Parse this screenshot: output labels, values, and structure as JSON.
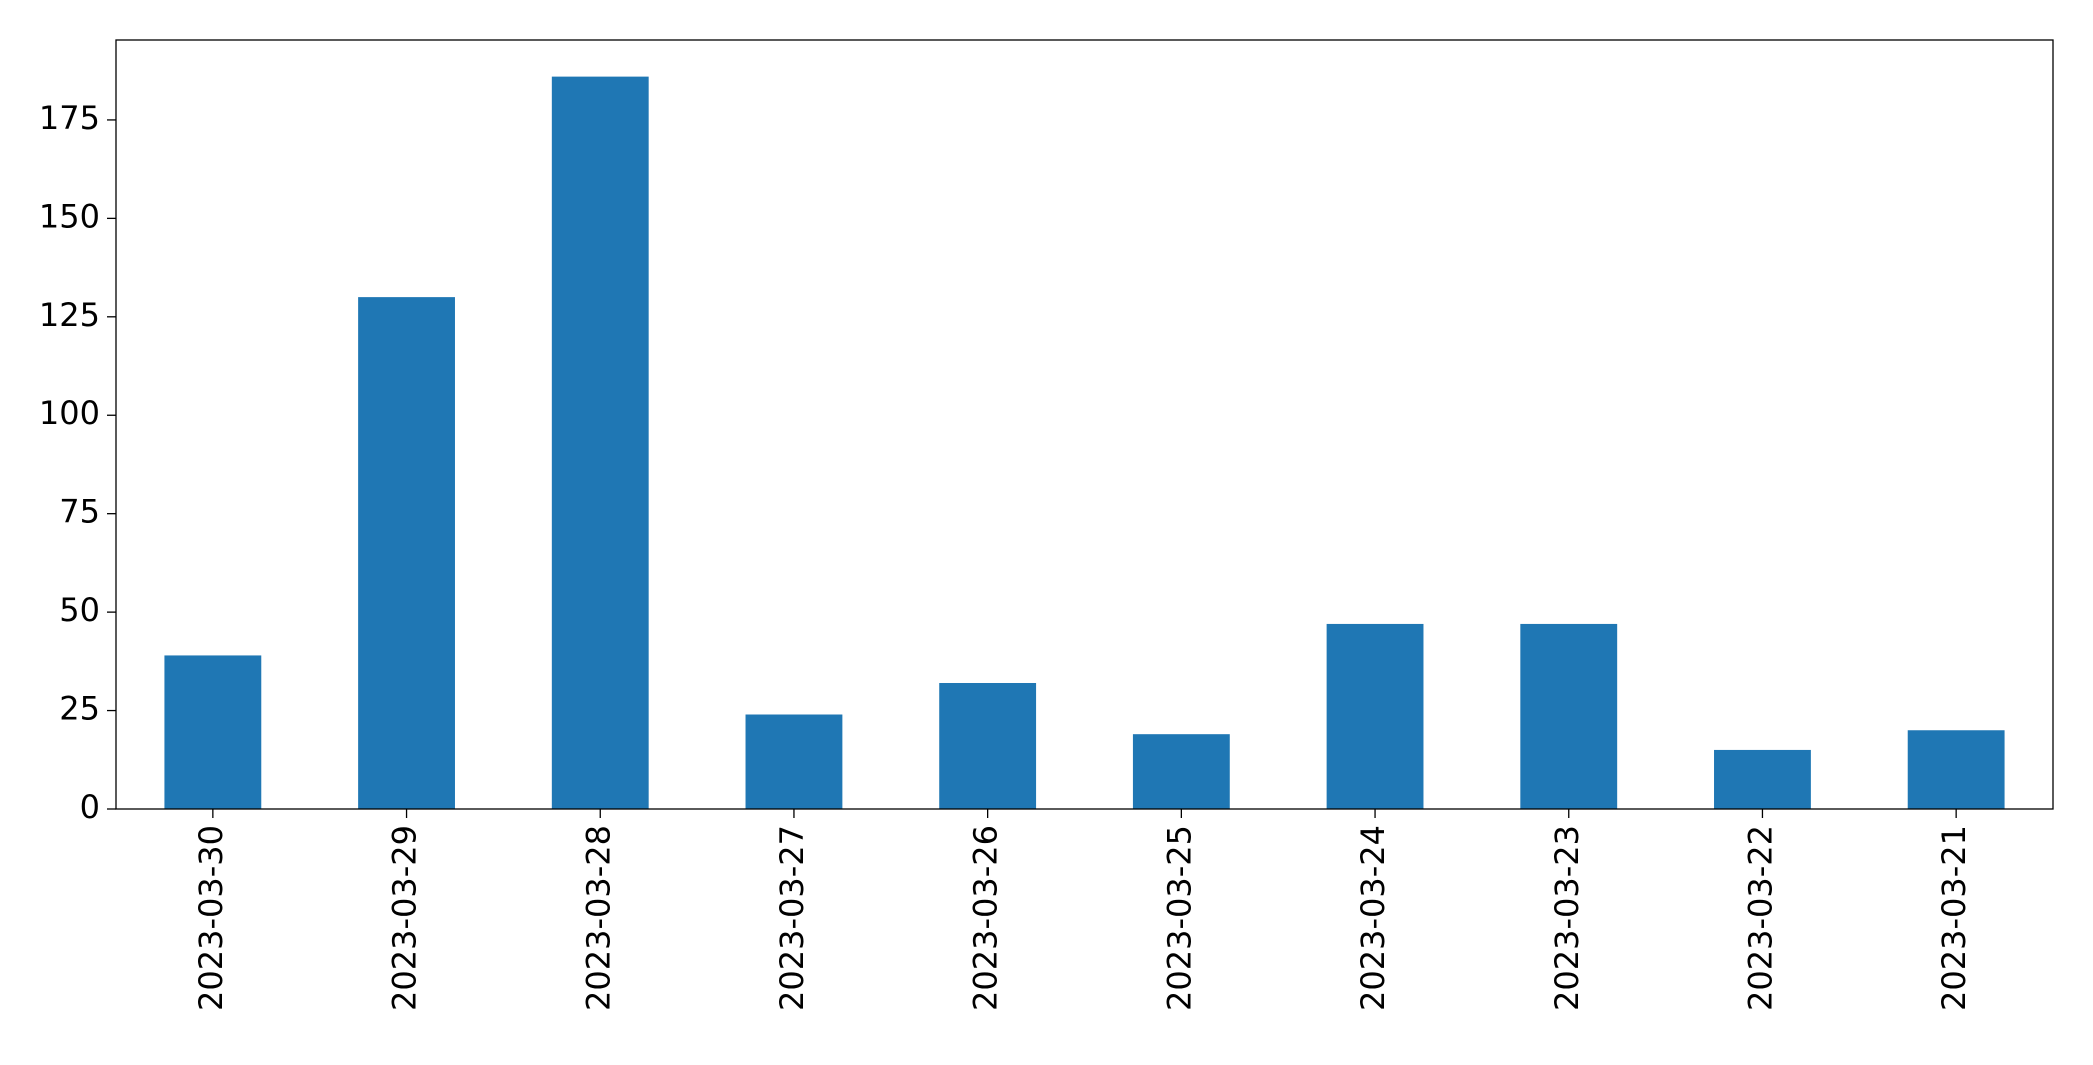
{
  "chart_data": {
    "type": "bar",
    "categories": [
      "2023-03-30",
      "2023-03-29",
      "2023-03-28",
      "2023-03-27",
      "2023-03-26",
      "2023-03-25",
      "2023-03-24",
      "2023-03-23",
      "2023-03-22",
      "2023-03-21"
    ],
    "values": [
      39,
      130,
      186,
      24,
      32,
      19,
      47,
      47,
      15,
      20
    ],
    "color": "#1f77b4",
    "ylim": [
      0,
      195.3
    ],
    "yticks": [
      0,
      25,
      50,
      75,
      100,
      125,
      150,
      175
    ]
  }
}
